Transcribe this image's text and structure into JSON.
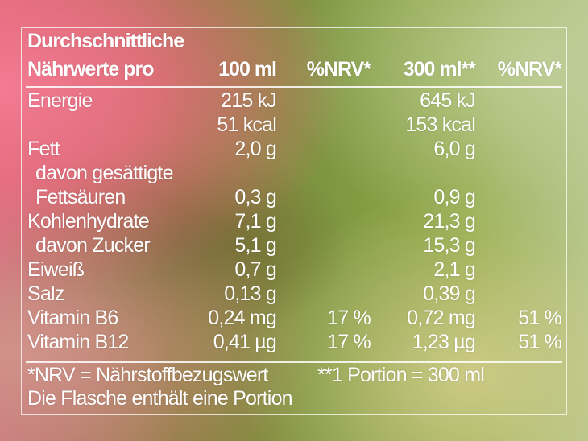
{
  "header": {
    "title_line1": "Durchschnittliche",
    "title_line2": "Nährwerte pro",
    "col_100ml": "100 ml",
    "col_nrv_1": "%NRV*",
    "col_300ml": "300 ml**",
    "col_nrv_2": "%NRV*"
  },
  "rows": [
    {
      "label": "Energie",
      "v100": "215 kJ",
      "nrv100": "",
      "v300": "645 kJ",
      "nrv300": ""
    },
    {
      "label": "",
      "v100": "51 kcal",
      "nrv100": "",
      "v300": "153 kcal",
      "nrv300": ""
    },
    {
      "label": "Fett",
      "v100": "2,0 g",
      "nrv100": "",
      "v300": "6,0 g",
      "nrv300": ""
    },
    {
      "label": " davon gesättigte",
      "v100": "",
      "nrv100": "",
      "v300": "",
      "nrv300": ""
    },
    {
      "label": " Fettsäuren",
      "v100": "0,3 g",
      "nrv100": "",
      "v300": "0,9 g",
      "nrv300": ""
    },
    {
      "label": "Kohlenhydrate",
      "v100": "7,1 g",
      "nrv100": "",
      "v300": "21,3 g",
      "nrv300": ""
    },
    {
      "label": " davon Zucker",
      "v100": "5,1 g",
      "nrv100": "",
      "v300": "15,3 g",
      "nrv300": ""
    },
    {
      "label": "Eiweiß",
      "v100": "0,7 g",
      "nrv100": "",
      "v300": "2,1 g",
      "nrv300": ""
    },
    {
      "label": "Salz",
      "v100": "0,13 g",
      "nrv100": "",
      "v300": "0,39 g",
      "nrv300": ""
    },
    {
      "label": "Vitamin B6",
      "v100": "0,24 mg",
      "nrv100": "17 %",
      "v300": "0,72 mg",
      "nrv300": "51 %"
    },
    {
      "label": "Vitamin B12",
      "v100": "0,41 µg",
      "nrv100": "17 %",
      "v300": "1,23 µg",
      "nrv300": "51 %"
    }
  ],
  "footer": {
    "nrv_note": "*NRV = Nährstoffbezugswert",
    "portion_note": "**1 Portion = 300 ml",
    "bottle_note": "Die Flasche enthält eine Portion"
  }
}
